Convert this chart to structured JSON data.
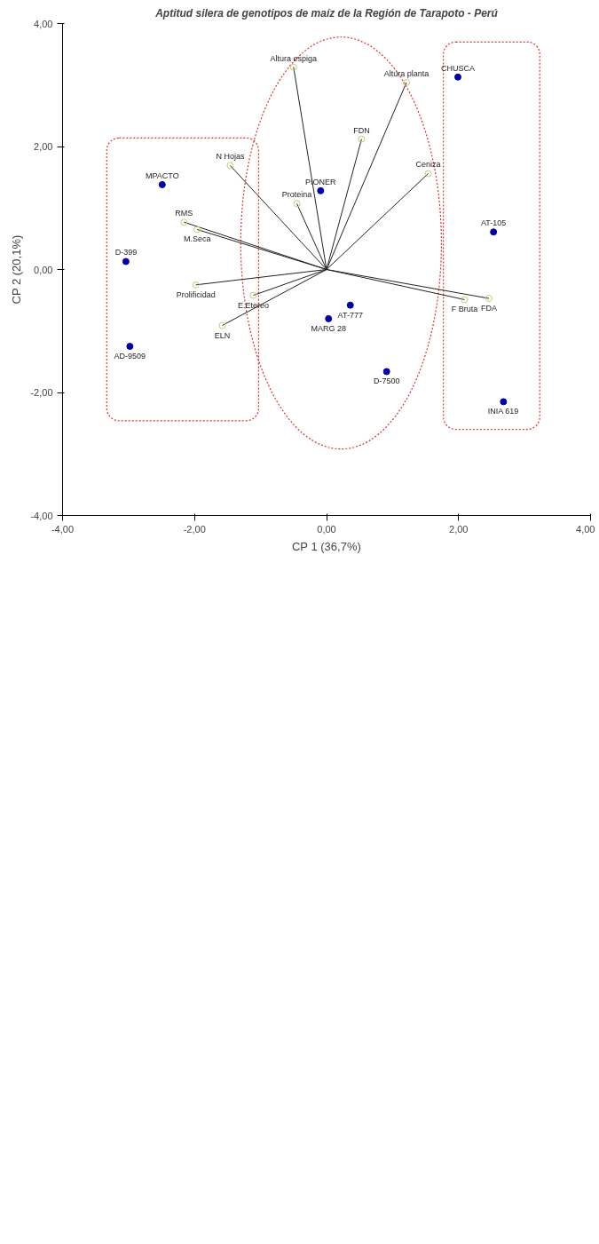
{
  "chart_data": {
    "type": "scatter",
    "title": "Aptitud silera de genotipos de maíz de la Región de Tarapoto - Perú",
    "xlabel": "CP 1 (36,7%)",
    "ylabel": "CP 2 (20,1%)",
    "xlim": [
      -4,
      4
    ],
    "ylim": [
      -4,
      4
    ],
    "xticks": [
      {
        "value": -4,
        "label": "-4,00"
      },
      {
        "value": -2,
        "label": "-2,00"
      },
      {
        "value": 0,
        "label": "0,00"
      },
      {
        "value": 2,
        "label": "2,00"
      },
      {
        "value": 4,
        "label": "4,00"
      }
    ],
    "yticks": [
      {
        "value": -4,
        "label": "-4,00"
      },
      {
        "value": -2,
        "label": "-2,00"
      },
      {
        "value": 0,
        "label": "0,00"
      },
      {
        "value": 2,
        "label": "2,00"
      },
      {
        "value": 4,
        "label": "4,00"
      }
    ],
    "grid": false,
    "series": [
      {
        "marker": "circle",
        "color": "#0000aa",
        "x": [
          1.99,
          2.53,
          2.68,
          0.91,
          0.36,
          0.03,
          -0.09,
          -2.49,
          -3.04,
          -2.98
        ],
        "values": [
          3.13,
          0.61,
          -2.15,
          -1.66,
          -0.58,
          -0.8,
          1.28,
          1.38,
          0.13,
          -1.25
        ]
      },
      {
        "type": "line",
        "color": "#222222",
        "x": [
          0,
          1.21,
          null,
          0,
          1.54,
          null,
          0,
          2.46,
          null,
          0,
          2.09,
          null,
          0,
          0.53,
          null,
          0,
          -0.5,
          null,
          0,
          -0.45,
          null,
          0,
          -1.46,
          null,
          0,
          -2.16,
          null,
          0,
          -1.96,
          null,
          0,
          -1.98,
          null,
          0,
          -1.11,
          null,
          0,
          -1.58
        ],
        "values": [
          0,
          3.04,
          null,
          0,
          1.56,
          null,
          0,
          -0.47,
          null,
          0,
          -0.49,
          null,
          0,
          2.12,
          null,
          0,
          3.29,
          null,
          0,
          1.07,
          null,
          0,
          1.69,
          null,
          0,
          0.77,
          null,
          0,
          0.65,
          null,
          0,
          -0.25,
          null,
          0,
          -0.42,
          null,
          0,
          -0.91
        ]
      },
      {
        "marker": "circle",
        "color": "#c8c878",
        "x": [
          1.21,
          1.54,
          2.46,
          2.09,
          0.53,
          -0.5,
          -0.45,
          -1.46,
          -2.16,
          -1.96,
          -1.98,
          -1.11,
          -1.58
        ],
        "values": [
          3.04,
          1.56,
          -0.47,
          -0.49,
          2.12,
          3.29,
          1.07,
          1.69,
          0.77,
          0.65,
          -0.25,
          -0.42,
          -0.91
        ]
      }
    ],
    "annotations": [
      {
        "text": "CHUSCA",
        "x": 1.99,
        "y": 3.13
      },
      {
        "text": "AT-105",
        "x": 2.53,
        "y": 0.61
      },
      {
        "text": "INIA 619",
        "x": 2.68,
        "y": -2.15
      },
      {
        "text": "D-7500",
        "x": 0.91,
        "y": -1.66
      },
      {
        "text": "AT-777",
        "x": 0.36,
        "y": -0.58
      },
      {
        "text": "MARG 28",
        "x": 0.03,
        "y": -0.8
      },
      {
        "text": "PIONER",
        "x": -0.09,
        "y": 1.28
      },
      {
        "text": "MPACTO",
        "x": -2.49,
        "y": 1.38
      },
      {
        "text": "D-399",
        "x": -3.04,
        "y": 0.13
      },
      {
        "text": "AD-9509",
        "x": -2.98,
        "y": -1.25
      },
      {
        "text": "Altura planta",
        "x": 1.21,
        "y": 3.04
      },
      {
        "text": "Ceniza",
        "x": 1.54,
        "y": 1.56
      },
      {
        "text": "FDA",
        "x": 2.46,
        "y": -0.47
      },
      {
        "text": "F Bruta",
        "x": 2.09,
        "y": -0.49
      },
      {
        "text": "FDN",
        "x": 0.53,
        "y": 2.12
      },
      {
        "text": "Altura espiga",
        "x": -0.5,
        "y": 3.29
      },
      {
        "text": "Proteina",
        "x": -0.45,
        "y": 1.07
      },
      {
        "text": "N Hojas",
        "x": -1.46,
        "y": 1.69
      },
      {
        "text": "RMS",
        "x": -2.16,
        "y": 0.77
      },
      {
        "text": "M.Seca",
        "x": -1.96,
        "y": 0.65
      },
      {
        "text": "Prolificidad",
        "x": -1.98,
        "y": -0.25
      },
      {
        "text": "E.Etereo",
        "x": -1.11,
        "y": -0.42
      },
      {
        "text": "ELN",
        "x": -1.58,
        "y": -0.91
      }
    ]
  }
}
